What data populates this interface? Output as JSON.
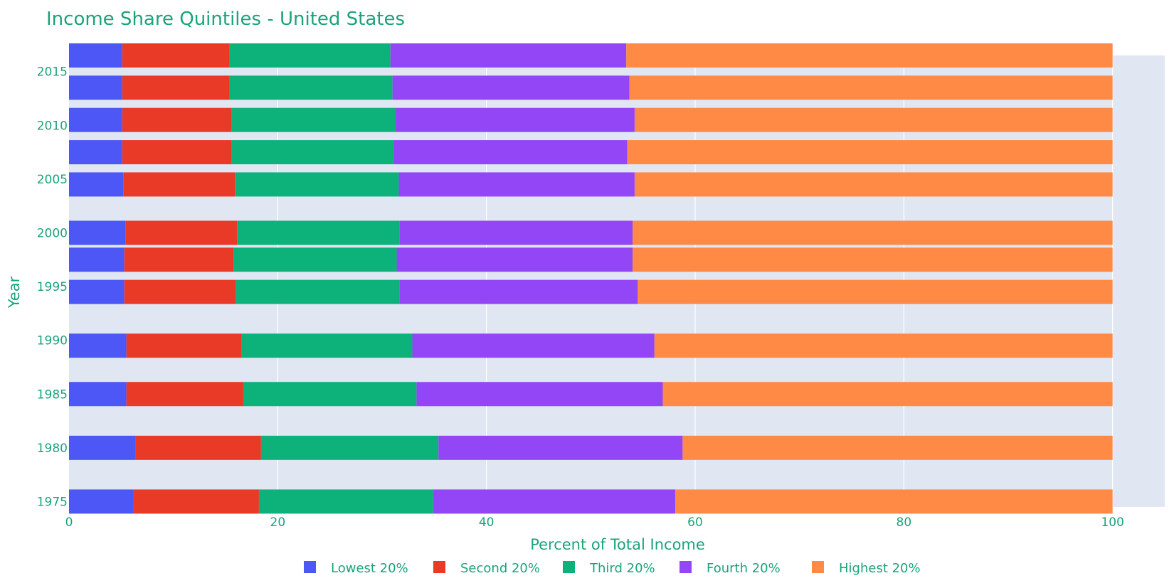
{
  "chart_data": {
    "type": "bar",
    "orientation": "horizontal",
    "barmode": "stack",
    "title": "Income Share Quintiles - United States",
    "xlabel": "Percent of Total Income",
    "ylabel": "Year",
    "xlim": [
      0,
      105
    ],
    "ylim": [
      1974.5,
      2016.5
    ],
    "x_ticks": [
      0,
      20,
      40,
      60,
      80,
      100
    ],
    "y_ticks": [
      1975,
      1980,
      1985,
      1990,
      1995,
      2000,
      2005,
      2010,
      2015
    ],
    "grid": true,
    "legend_position": "bottom",
    "years": [
      1975,
      1980,
      1985,
      1989.5,
      1994.5,
      1997.5,
      2000,
      2004.5,
      2007.5,
      2010.5,
      2013.5,
      2016.5
    ],
    "series": [
      {
        "name": "Lowest 20%",
        "color": "#4c57f5",
        "values": [
          6.2,
          6.4,
          5.5,
          5.5,
          5.3,
          5.3,
          5.4,
          5.2,
          5.1,
          5.1,
          5.1,
          5.1
        ]
      },
      {
        "name": "Second 20%",
        "color": "#e83a27",
        "values": [
          12.0,
          12.0,
          11.2,
          11.0,
          10.7,
          10.5,
          10.7,
          10.7,
          10.5,
          10.5,
          10.3,
          10.3
        ]
      },
      {
        "name": "Third 20%",
        "color": "#0db27b",
        "values": [
          16.7,
          17.0,
          16.6,
          16.4,
          15.7,
          15.6,
          15.6,
          15.7,
          15.5,
          15.7,
          15.6,
          15.4
        ]
      },
      {
        "name": "Fourth 20%",
        "color": "#9346f6",
        "values": [
          23.2,
          23.4,
          23.6,
          23.2,
          22.8,
          22.6,
          22.3,
          22.6,
          22.4,
          22.9,
          22.7,
          22.6
        ]
      },
      {
        "name": "Highest 20%",
        "color": "#ff8a45",
        "values": [
          41.9,
          41.2,
          43.1,
          43.9,
          45.5,
          46.0,
          46.0,
          45.8,
          46.5,
          45.8,
          46.3,
          46.6
        ]
      }
    ]
  }
}
